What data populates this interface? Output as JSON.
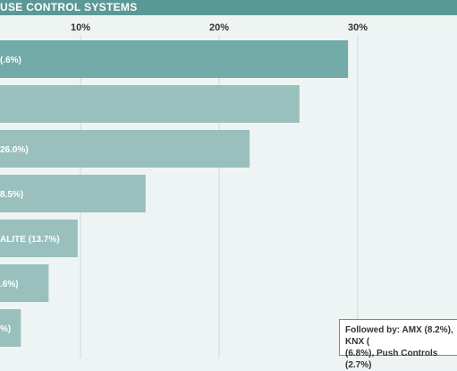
{
  "title": "USE CONTROL SYSTEMS",
  "chart_data": {
    "type": "bar",
    "orientation": "horizontal",
    "title": "USE CONTROL SYSTEMS",
    "ticks": [
      "10%",
      "20%",
      "30%"
    ],
    "tick_values": [
      10,
      20,
      30
    ],
    "xlim": [
      0,
      33
    ],
    "grid": true,
    "bars": [
      {
        "label": "(.6%)",
        "value": 29.3,
        "highlight": true
      },
      {
        "label": "",
        "value": 25.8
      },
      {
        "label": "26.0%)",
        "value": 22.2
      },
      {
        "label": "8.5%)",
        "value": 14.7
      },
      {
        "label": "ALITE (13.7%)",
        "value": 9.8
      },
      {
        "label": ".6%)",
        "value": 7.7
      },
      {
        "label": "%)",
        "value": 5.7
      }
    ],
    "colors": {
      "highlight": "#72aba8",
      "bar": "#99c0bd",
      "title_bar": "#5a9996",
      "background": "#eef4f3"
    }
  },
  "note": {
    "line1": "Followed by: AMX (8.2%), KNX (",
    "line2": "(6.8%), Push Controls (2.7%)"
  }
}
